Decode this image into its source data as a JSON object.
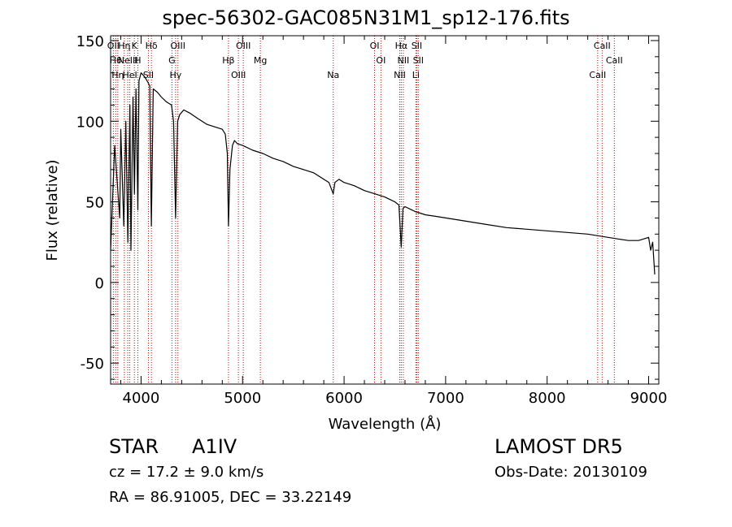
{
  "header": {
    "title": "spec-56302-GAC085N31M1_sp12-176.fits"
  },
  "info": {
    "object_type": "STAR",
    "subclass": "A1IV",
    "survey": "LAMOST  DR5",
    "redshift": "cz = 17.2 ± 9.0 km/s",
    "obs_date": "Obs-Date: 20130109",
    "coords": "RA =  86.91005, DEC =  33.22149"
  },
  "chart_data": {
    "type": "line",
    "title": "spec-56302-GAC085N31M1_sp12-176.fits",
    "xlabel": "Wavelength (Å)",
    "ylabel": "Flux (relative)",
    "xlim": [
      3700,
      9100
    ],
    "ylim": [
      -63,
      153
    ],
    "x_ticks": [
      4000,
      5000,
      6000,
      7000,
      8000,
      9000
    ],
    "y_ticks": [
      -50,
      0,
      50,
      100,
      150
    ],
    "grid": false,
    "line_color": "#000000",
    "marker_color": "#cc0000",
    "series": [
      {
        "x": [
          3700,
          3740,
          3790,
          3800,
          3830,
          3850,
          3870,
          3890,
          3900,
          3920,
          3935,
          3950,
          3968,
          3980,
          4000,
          4030,
          4060,
          4085,
          4101,
          4120,
          4160,
          4200,
          4250,
          4300,
          4320,
          4340,
          4360,
          4380,
          4420,
          4480,
          4550,
          4600,
          4650,
          4700,
          4750,
          4800,
          4830,
          4850,
          4861,
          4875,
          4900,
          4920,
          4950,
          5000,
          5100,
          5200,
          5300,
          5400,
          5500,
          5600,
          5700,
          5800,
          5850,
          5893,
          5910,
          5950,
          6000,
          6100,
          6200,
          6300,
          6400,
          6500,
          6540,
          6563,
          6580,
          6600,
          6700,
          6800,
          6900,
          7000,
          7200,
          7400,
          7600,
          7800,
          8000,
          8200,
          8400,
          8500,
          8600,
          8700,
          8800,
          8900,
          8950,
          9000,
          9020,
          9040,
          9060
        ],
        "y": [
          20,
          85,
          40,
          95,
          35,
          100,
          25,
          110,
          20,
          115,
          55,
          120,
          45,
          125,
          130,
          128,
          125,
          122,
          35,
          120,
          118,
          115,
          112,
          110,
          100,
          40,
          100,
          104,
          107,
          105,
          102,
          100,
          98,
          97,
          96,
          95,
          92,
          80,
          35,
          70,
          85,
          88,
          86,
          85,
          82,
          80,
          77,
          75,
          72,
          70,
          68,
          64,
          62,
          55,
          62,
          64,
          62,
          60,
          57,
          55,
          53,
          50,
          48,
          22,
          46,
          47,
          44,
          42,
          41,
          40,
          38,
          36,
          34,
          33,
          32,
          31,
          30,
          29,
          28,
          27,
          26,
          26,
          27,
          28,
          20,
          25,
          5
        ]
      }
    ],
    "markers": [
      {
        "x": 3727,
        "label": "OII"
      },
      {
        "x": 3750,
        "label": "Hθ"
      },
      {
        "x": 3771,
        "label": "Hη"
      },
      {
        "x": 3835,
        "label": "Hη"
      },
      {
        "x": 3869,
        "label": "NeIII"
      },
      {
        "x": 3889,
        "label": "HeI"
      },
      {
        "x": 3934,
        "label": "K"
      },
      {
        "x": 3968,
        "label": "H"
      },
      {
        "x": 4072,
        "label": "SII"
      },
      {
        "x": 4102,
        "label": "Hδ"
      },
      {
        "x": 4304,
        "label": "G"
      },
      {
        "x": 4340,
        "label": "Hγ"
      },
      {
        "x": 4363,
        "label": "OIII"
      },
      {
        "x": 4861,
        "label": "Hβ"
      },
      {
        "x": 4959,
        "label": "OIII"
      },
      {
        "x": 5007,
        "label": "OIII"
      },
      {
        "x": 5175,
        "label": "Mg"
      },
      {
        "x": 5893,
        "label": "Na"
      },
      {
        "x": 6300,
        "label": "OI"
      },
      {
        "x": 6363,
        "label": "OI"
      },
      {
        "x": 6548,
        "label": "NII"
      },
      {
        "x": 6563,
        "label": "Hα"
      },
      {
        "x": 6583,
        "label": "NII"
      },
      {
        "x": 6707,
        "label": "Li"
      },
      {
        "x": 6716,
        "label": "SII"
      },
      {
        "x": 6731,
        "label": "SII"
      },
      {
        "x": 8498,
        "label": "CaII"
      },
      {
        "x": 8542,
        "label": "CaII"
      },
      {
        "x": 8662,
        "label": "CaII"
      }
    ]
  }
}
